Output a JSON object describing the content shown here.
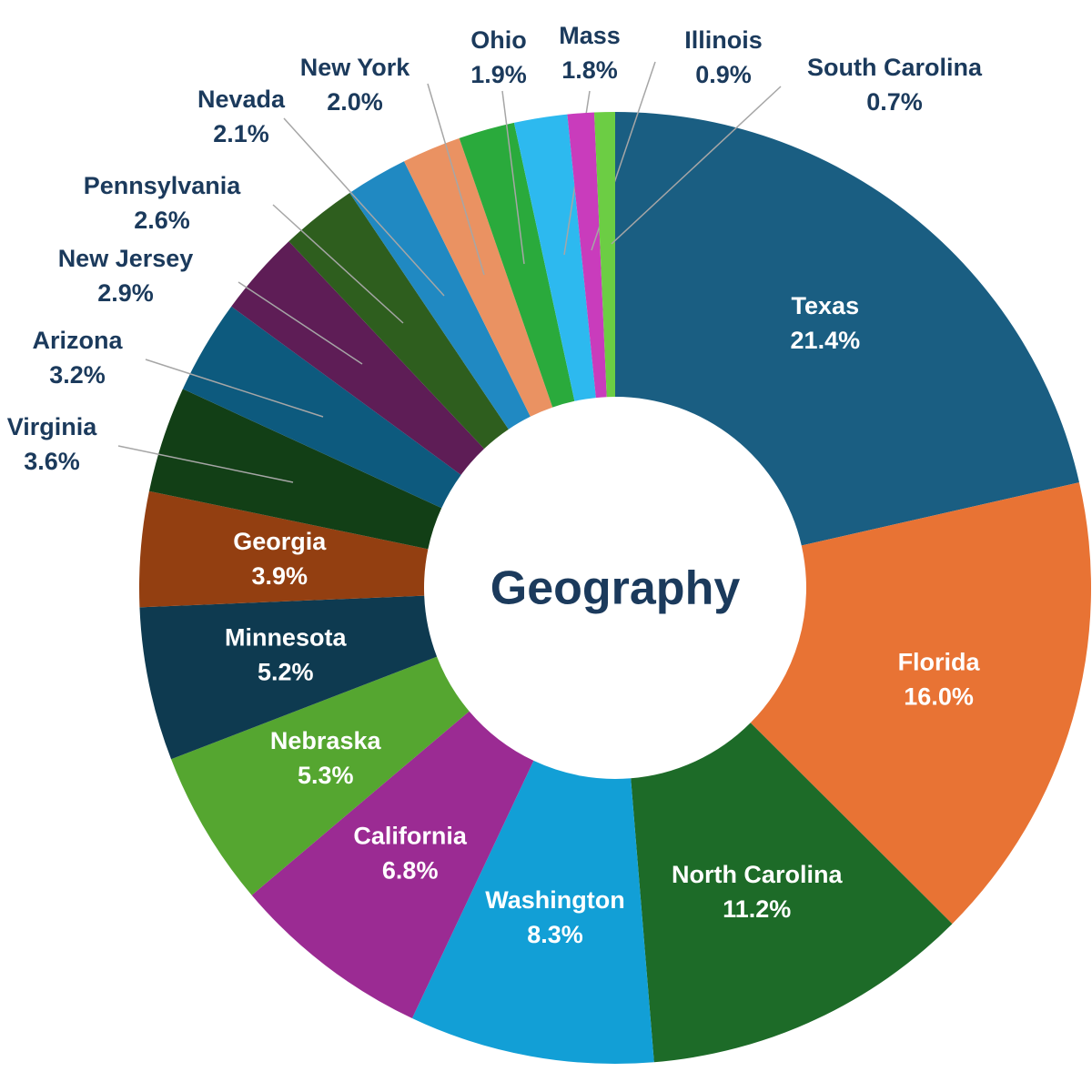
{
  "chart_data": {
    "type": "donut",
    "title": "Geography",
    "categories": [
      "Texas",
      "Florida",
      "North Carolina",
      "Washington",
      "California",
      "Nebraska",
      "Minnesota",
      "Georgia",
      "Virginia",
      "Arizona",
      "New Jersey",
      "Pennsylvania",
      "Nevada",
      "New York",
      "Ohio",
      "Mass",
      "Illinois",
      "South Carolina"
    ],
    "values": [
      21.4,
      16.0,
      11.2,
      8.3,
      6.8,
      5.3,
      5.2,
      3.9,
      3.6,
      3.2,
      2.9,
      2.6,
      2.1,
      2.0,
      1.9,
      1.8,
      0.9,
      0.7
    ],
    "value_labels": [
      "21.4%",
      "16.0%",
      "11.2%",
      "8.3%",
      "6.8%",
      "5.3%",
      "5.2%",
      "3.9%",
      "3.6%",
      "3.2%",
      "2.9%",
      "2.6%",
      "2.1%",
      "2.0%",
      "1.9%",
      "1.8%",
      "0.9%",
      "0.7%"
    ],
    "colors": [
      "#1a5e82",
      "#e87334",
      "#1d6b28",
      "#129fd6",
      "#9b2b93",
      "#55a630",
      "#0e3a50",
      "#933f11",
      "#123f16",
      "#0d5a7e",
      "#5e1d56",
      "#2e5e1e",
      "#2089c2",
      "#ea9262",
      "#2aaa3c",
      "#2db9ef",
      "#c93cbc",
      "#6ccd44"
    ]
  }
}
